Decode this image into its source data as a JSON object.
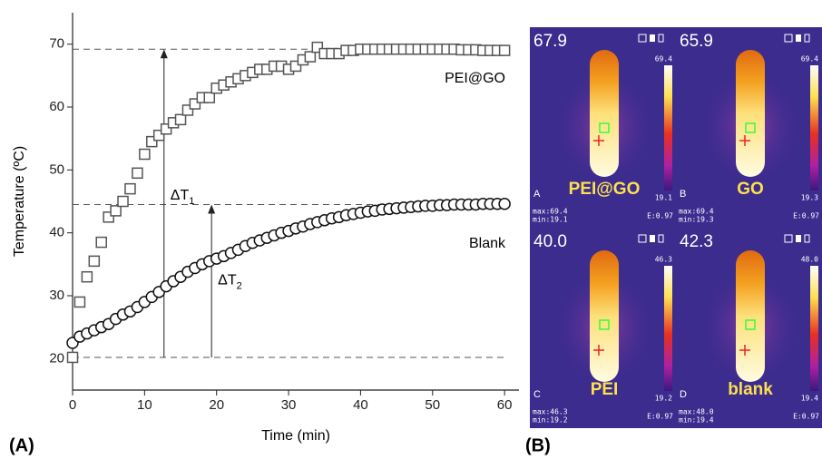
{
  "chart_data": {
    "type": "scatter",
    "x_label": "Time (min)",
    "y_label": "Temperature (ºC)",
    "panel_label": "(A)",
    "xlim": [
      0,
      62
    ],
    "xticks": [
      0,
      10,
      20,
      30,
      40,
      50,
      60
    ],
    "ylim": [
      15,
      75
    ],
    "yticks": [
      20,
      30,
      40,
      50,
      60,
      70
    ],
    "x": [
      0,
      1,
      2,
      3,
      4,
      5,
      6,
      7,
      8,
      9,
      10,
      11,
      12,
      13,
      14,
      15,
      16,
      17,
      18,
      19,
      20,
      21,
      22,
      23,
      24,
      25,
      26,
      27,
      28,
      29,
      30,
      31,
      32,
      33,
      34,
      35,
      36,
      37,
      38,
      39,
      40,
      41,
      42,
      43,
      44,
      45,
      46,
      47,
      48,
      49,
      50,
      51,
      52,
      53,
      54,
      55,
      56,
      57,
      58,
      59,
      60
    ],
    "series": [
      {
        "name": "PEI@GO",
        "marker": "square",
        "color": "#555555",
        "values": [
          20.2,
          29,
          33,
          35.5,
          38.5,
          42.5,
          43.5,
          45,
          47,
          49.5,
          52.5,
          54.5,
          55.5,
          56.5,
          57.5,
          58,
          59.5,
          60.5,
          61.5,
          61.5,
          63,
          63.5,
          64,
          64.5,
          65,
          65.5,
          66,
          66,
          66.5,
          66.5,
          66,
          66.5,
          67.5,
          68,
          69.5,
          68.5,
          68.5,
          68.5,
          69,
          69,
          69.2,
          69.2,
          69.2,
          69.2,
          69.2,
          69.2,
          69.2,
          69.2,
          69.2,
          69.2,
          69.2,
          69.2,
          69.2,
          69.2,
          69.1,
          69.1,
          69.1,
          69,
          69,
          69,
          69
        ]
      },
      {
        "name": "Blank",
        "marker": "circle",
        "color": "#111111",
        "values": [
          22.5,
          23.5,
          24,
          24.5,
          25,
          25.5,
          26.3,
          27,
          27.5,
          28.2,
          29,
          29.8,
          30.6,
          31.5,
          32.3,
          33,
          33.8,
          34.4,
          35,
          35.5,
          35.9,
          36.3,
          36.8,
          37.3,
          37.9,
          38.4,
          38.8,
          39.2,
          39.6,
          40,
          40.3,
          40.7,
          41,
          41.4,
          41.7,
          42,
          42.3,
          42.5,
          42.8,
          43,
          43.2,
          43.4,
          43.5,
          43.7,
          43.8,
          43.9,
          44,
          44.1,
          44.2,
          44.3,
          44.3,
          44.4,
          44.4,
          44.5,
          44.5,
          44.5,
          44.5,
          44.6,
          44.6,
          44.6,
          44.6
        ]
      }
    ],
    "reference_lines": [
      69.2,
      44.5,
      20.2
    ],
    "annotations": [
      {
        "text": "ΔT",
        "sub": "1",
        "x": 12.7,
        "from": 20.2,
        "to": 69.2
      },
      {
        "text": "ΔT",
        "sub": "2",
        "x": 19.3,
        "from": 20.2,
        "to": 44.5
      }
    ]
  },
  "thermal": {
    "panel_label": "(B)",
    "panels": [
      {
        "letter": "A",
        "reading": "67.9",
        "scale_max": "69.4",
        "scale_min": "19.1",
        "name": "PEI@GO",
        "max": "max:69.4",
        "min": "min:19.1",
        "emissivity": "E:0.97"
      },
      {
        "letter": "B",
        "reading": "65.9",
        "scale_max": "69.4",
        "scale_min": "19.3",
        "name": "GO",
        "max": "max:69.4",
        "min": "min:19.3",
        "emissivity": "E:0.97"
      },
      {
        "letter": "C",
        "reading": "40.0",
        "scale_max": "46.3",
        "scale_min": "19.2",
        "name": "PEI",
        "max": "max:46.3",
        "min": "min:19.2",
        "emissivity": "E:0.97"
      },
      {
        "letter": "D",
        "reading": "42.3",
        "scale_max": "48.0",
        "scale_min": "19.4",
        "name": "blank",
        "max": "max:48.0",
        "min": "min:19.4",
        "emissivity": "E:0.97"
      }
    ]
  }
}
